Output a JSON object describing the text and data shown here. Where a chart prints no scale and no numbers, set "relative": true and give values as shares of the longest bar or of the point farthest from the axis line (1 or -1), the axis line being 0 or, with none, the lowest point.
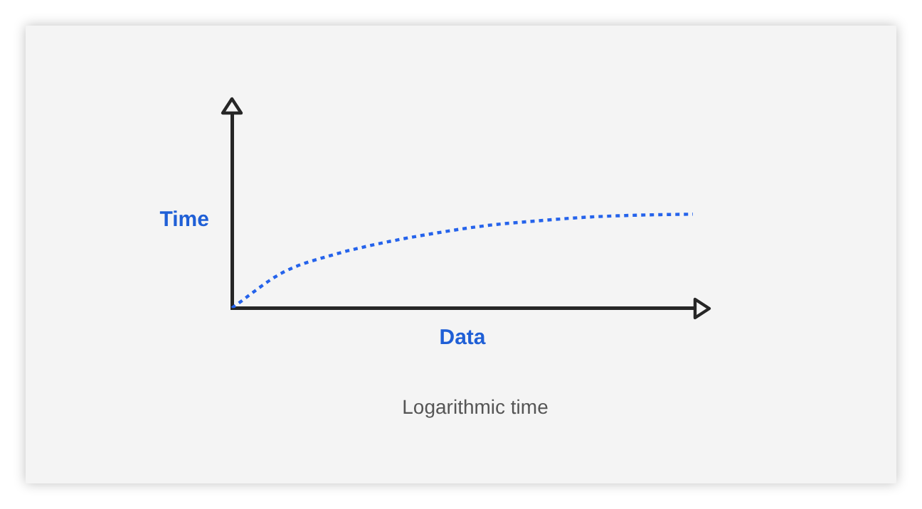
{
  "chart_data": {
    "type": "line",
    "relative": true,
    "xlabel": "Data",
    "ylabel": "Time",
    "annotations": [
      "Logarithmic time"
    ],
    "categories": [
      null,
      null,
      null,
      null,
      null,
      null,
      null,
      null,
      null,
      null
    ],
    "series": [
      {
        "color": "#2563eb",
        "values": [
          0,
          0.38,
          0.57,
          0.7,
          0.8,
          0.88,
          0.93,
          0.97,
          0.99,
          1
        ]
      }
    ],
    "line_style": "dashed",
    "marker": "none",
    "grid": false,
    "legend": false
  }
}
